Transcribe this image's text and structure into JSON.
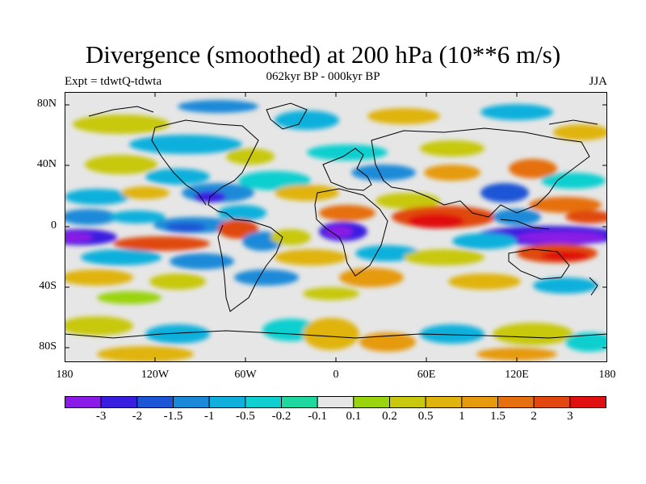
{
  "title": "Divergence (smoothed) at 200 hPa (10**6 m/s)",
  "subtitle": "062kyr BP - 000kyr BP",
  "experiment": "Expt = tdwtQ-tdwta",
  "season": "JJA",
  "lat_ticks": [
    "80N",
    "40N",
    "0",
    "40S",
    "80S"
  ],
  "lon_ticks": [
    "180",
    "120W",
    "60W",
    "0",
    "60E",
    "120E",
    "180"
  ],
  "colorbar": {
    "colors": [
      "#8a1ae6",
      "#3a1ee0",
      "#1c55d6",
      "#1a8ad8",
      "#10b0dc",
      "#0fcfd0",
      "#1ed8a0",
      "#e6e6e6",
      "#9ad40e",
      "#c8c80e",
      "#e0b40e",
      "#e69a10",
      "#e67010",
      "#e04810",
      "#e01010"
    ],
    "labels": [
      "-3",
      "-2",
      "-1.5",
      "-1",
      "-0.5",
      "-0.2",
      "-0.1",
      "0.1",
      "0.2",
      "0.5",
      "1",
      "1.5",
      "2",
      "3"
    ]
  },
  "chart_data": {
    "type": "heatmap",
    "title": "Divergence (smoothed) at 200 hPa (10**6 m/s)",
    "subtitle": "062kyr BP - 000kyr BP",
    "experiment": "Expt = tdwtQ-tdwta",
    "season": "JJA",
    "x_axis": {
      "label": "longitude",
      "range": [
        -180,
        180
      ],
      "ticks": [
        "180",
        "120W",
        "60W",
        "0",
        "60E",
        "120E",
        "180"
      ]
    },
    "y_axis": {
      "label": "latitude",
      "range": [
        -90,
        90
      ],
      "ticks": [
        "80N",
        "40N",
        "0",
        "40S",
        "80S"
      ]
    },
    "levels": [
      -3,
      -2,
      -1.5,
      -1,
      -0.5,
      -0.2,
      -0.1,
      0.1,
      0.2,
      0.5,
      1,
      1.5,
      2,
      3
    ],
    "features": [
      {
        "name": "strong convergence, western Pacific equator",
        "lon": 160,
        "lat": -5,
        "value": -3
      },
      {
        "name": "strong convergence, equatorial Atlantic",
        "lon": 0,
        "lat": -2,
        "value": -3
      },
      {
        "name": "strong convergence, eastern Pacific",
        "lon": -170,
        "lat": -8,
        "value": -3
      },
      {
        "name": "convergence, central America",
        "lon": -90,
        "lat": 20,
        "value": -1.5
      },
      {
        "name": "strong divergence, Indian Ocean",
        "lon": 75,
        "lat": 5,
        "value": 3
      },
      {
        "name": "divergence, West Africa",
        "lon": 10,
        "lat": 8,
        "value": 2
      },
      {
        "name": "divergence, South Pacific",
        "lon": 150,
        "lat": -15,
        "value": 2
      },
      {
        "name": "divergence, tropical South Pacific",
        "lon": -135,
        "lat": -12,
        "value": 1.5
      },
      {
        "name": "divergence, Brazil",
        "lon": -62,
        "lat": -5,
        "value": 2
      },
      {
        "name": "divergence, East Asia",
        "lon": 120,
        "lat": 35,
        "value": 1.5
      }
    ]
  }
}
